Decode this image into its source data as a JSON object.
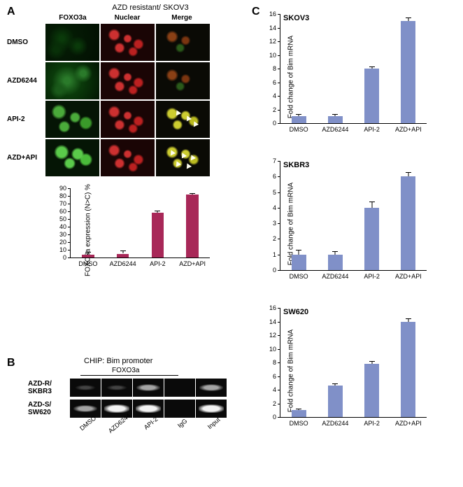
{
  "panelA": {
    "label": "A",
    "title": "AZD resistant/ SKOV3",
    "columns": [
      "FOXO3a",
      "Nuclear",
      "Merge"
    ],
    "rows": [
      "DMSO",
      "AZD6244",
      "API-2",
      "AZD+API"
    ],
    "chart": {
      "ylabel": "FOXO3a expression (N>C) %",
      "ylim": [
        0,
        90
      ],
      "ytick_step": 10,
      "categories": [
        "DMSO",
        "AZD6244",
        "API-2",
        "AZD+API"
      ],
      "values": [
        4,
        5,
        58,
        82
      ],
      "errors": [
        3,
        4,
        3,
        2
      ],
      "bar_color": "#a82858",
      "bar_width": 0.35
    }
  },
  "panelB": {
    "label": "B",
    "title": "CHIP: Bim promoter",
    "antibody": "FOXO3a",
    "rows": [
      {
        "label": "AZD-R/\nSKBR3",
        "bands": [
          "faint",
          "faint",
          "medium",
          "none",
          "medium"
        ]
      },
      {
        "label": "AZD-S/\nSW620",
        "bands": [
          "medium",
          "strong",
          "strong",
          "none",
          "strong"
        ]
      }
    ],
    "lanes": [
      "DMSO",
      "AZD6244",
      "API-2",
      "IgG",
      "Input"
    ]
  },
  "panelC": {
    "label": "C",
    "ylabel": "Fold change of Bim mRNA",
    "categories": [
      "DMSO",
      "AZD6244",
      "API-2",
      "AZD+API"
    ],
    "bar_color": "#8090c8",
    "bar_width": 0.4,
    "charts": [
      {
        "title": "SKOV3",
        "ylim": [
          0,
          16
        ],
        "ytick_step": 2,
        "values": [
          1.0,
          1.0,
          8.0,
          15.0
        ],
        "errors": [
          0.3,
          0.3,
          0.3,
          0.5
        ]
      },
      {
        "title": "SKBR3",
        "ylim": [
          0,
          7
        ],
        "ytick_step": 1,
        "values": [
          1.0,
          1.0,
          4.0,
          6.0
        ],
        "errors": [
          0.3,
          0.2,
          0.4,
          0.3
        ]
      },
      {
        "title": "SW620",
        "ylim": [
          0,
          16
        ],
        "ytick_step": 2,
        "values": [
          1.0,
          4.6,
          7.8,
          14.0
        ],
        "errors": [
          0.2,
          0.3,
          0.4,
          0.5
        ]
      }
    ]
  }
}
